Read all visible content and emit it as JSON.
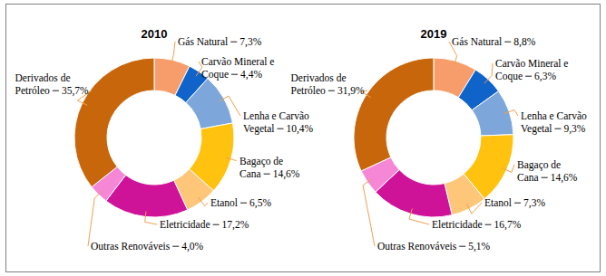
{
  "chart_data": [
    {
      "type": "donut",
      "title": "2010",
      "categories": [
        "Gás Natural",
        "Carvão Mineral e Coque",
        "Lenha e Carvão Vegetal",
        "Bagaço de Cana",
        "Etanol",
        "Eletricidade",
        "Outras Renováveis",
        "Derivados de Petróleo"
      ],
      "values": [
        7.3,
        4.4,
        10.4,
        14.6,
        6.5,
        17.2,
        4.0,
        35.7
      ],
      "value_labels": [
        "7,3%",
        "4,4%",
        "10,4%",
        "14,6%",
        "6,5%",
        "17,2%",
        "4,0%",
        "35,7%"
      ],
      "colors": [
        "#f79d6b",
        "#0f63c9",
        "#7da6da",
        "#ffc20e",
        "#fdc679",
        "#cf1399",
        "#f587d6",
        "#c8660c"
      ],
      "data_labels": true
    },
    {
      "type": "donut",
      "title": "2019",
      "categories": [
        "Gás Natural",
        "Carvão Mineral e Coque",
        "Lenha e Carvão Vegetal",
        "Bagaço de Cana",
        "Etanol",
        "Eletricidade",
        "Outras Renováveis",
        "Derivados de Petróleo"
      ],
      "values": [
        8.8,
        6.3,
        9.3,
        14.6,
        7.3,
        16.7,
        5.1,
        31.9
      ],
      "value_labels": [
        "8,8%",
        "6,3%",
        "9,3%",
        "14,6%",
        "7,3%",
        "16,7%",
        "5,1%",
        "31,9%"
      ],
      "colors": [
        "#f79d6b",
        "#0f63c9",
        "#7da6da",
        "#ffc20e",
        "#fdc679",
        "#cf1399",
        "#f587d6",
        "#c8660c"
      ],
      "data_labels": true
    }
  ]
}
